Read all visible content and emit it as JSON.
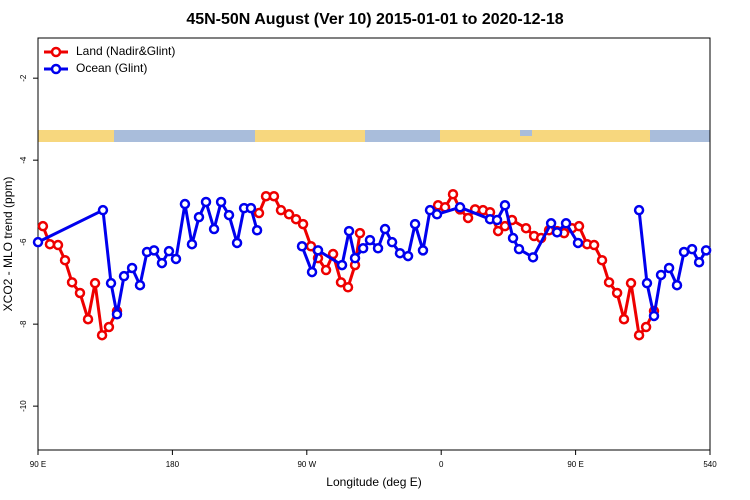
{
  "chart_data": {
    "type": "line",
    "title": "45N-50N August (Ver 10)   2015-01-01 to 2020-12-18",
    "x_label": "Longitude (deg E)",
    "y_label": "XCO2 - MLO trend (ppm)",
    "xlim": [
      90,
      540
    ],
    "xticks": [
      {
        "value": 90,
        "label": "90 E"
      },
      180,
      {
        "value": 270,
        "label": "90 W"
      },
      {
        "value": 360,
        "label": "0"
      },
      {
        "value": 450,
        "label": "90 E"
      },
      540
    ],
    "ylim": [
      -11.07,
      -1.02
    ],
    "yticks": [
      -10,
      -8,
      -6,
      -4,
      -2
    ],
    "legend": "top-left",
    "series": [
      {
        "name": "Land (Nadir&Glint)",
        "color": "#ee0000",
        "x": [
          93.3,
          98,
          103.4,
          108.1,
          112.8,
          118.1,
          123.5,
          128.2,
          132.9,
          137.5,
          142.9,
          null,
          238,
          242.7,
          248,
          252.7,
          258.1,
          262.8,
          267.5,
          272.8,
          277.5,
          282.9,
          287.6,
          292.9,
          297.6,
          302.3,
          305.6,
          null,
          357.9,
          362.6,
          367.9,
          372.6,
          378,
          382.7,
          388,
          392.7,
          398.1,
          402.7,
          407.4,
          416.8,
          422.2,
          426.9,
          432.2,
          437.6,
          442.3,
          447.6,
          452.3,
          457.7,
          462.4,
          467.7,
          472.4,
          477.8,
          482.4,
          487.1,
          492.5,
          497.2,
          502.5
        ],
        "values": [
          -5.61,
          -6.05,
          -6.07,
          -6.44,
          -6.98,
          -7.24,
          -7.88,
          -7.0,
          -8.27,
          -8.07,
          -7.68,
          null,
          -5.29,
          -4.88,
          -4.88,
          -5.22,
          -5.32,
          -5.44,
          -5.56,
          -6.1,
          -6.39,
          -6.68,
          -6.29,
          -6.98,
          -7.1,
          -6.56,
          -5.78,
          null,
          -5.1,
          -5.15,
          -4.83,
          -5.2,
          -5.41,
          -5.2,
          -5.22,
          -5.27,
          -5.73,
          -5.61,
          -5.46,
          -5.66,
          -5.85,
          -5.9,
          -5.71,
          -5.73,
          -5.78,
          -5.66,
          -5.61,
          -6.05,
          -6.07,
          -6.44,
          -6.98,
          -7.24,
          -7.88,
          -7.0,
          -8.27,
          -8.07,
          -7.68
        ]
      },
      {
        "name": "Ocean (Glint)",
        "color": "#0000ee",
        "x": [
          90,
          133.5,
          138.9,
          142.9,
          147.6,
          153,
          158.3,
          163,
          167.7,
          173,
          177.7,
          182.4,
          188.4,
          193.1,
          197.8,
          202.5,
          207.9,
          212.6,
          217.9,
          223.3,
          228,
          232.6,
          236.7,
          null,
          266.8,
          273.5,
          277.5,
          293.6,
          298.3,
          302.3,
          307.7,
          312.3,
          317.7,
          322.4,
          327.1,
          332.4,
          337.8,
          342.5,
          347.8,
          352.5,
          357.2,
          372.6,
          392.7,
          397.4,
          402.7,
          408.1,
          412.1,
          421.5,
          433.6,
          437.6,
          443.6,
          451.6,
          null,
          492.5,
          497.8,
          502.5,
          507.2,
          512.6,
          517.9,
          522.6,
          528,
          532.7,
          537.4
        ],
        "values": [
          -6.0,
          -5.22,
          -7.0,
          -7.76,
          -6.83,
          -6.63,
          -7.05,
          -6.24,
          -6.2,
          -6.51,
          -6.22,
          -6.41,
          -5.07,
          -6.05,
          -5.39,
          -5.02,
          -5.68,
          -5.02,
          -5.34,
          -6.02,
          -5.17,
          -5.17,
          -5.71,
          null,
          -6.1,
          -6.73,
          -6.2,
          -6.56,
          -5.73,
          -6.39,
          -6.15,
          -5.95,
          -6.15,
          -5.68,
          -6.0,
          -6.27,
          -6.34,
          -5.56,
          -6.2,
          -5.22,
          -5.32,
          -5.15,
          -5.44,
          -5.46,
          -5.1,
          -5.9,
          -6.17,
          -6.37,
          -5.54,
          -5.76,
          -5.54,
          -6.02,
          null,
          -5.22,
          -7.0,
          -7.8,
          -6.8,
          -6.63,
          -7.05,
          -6.24,
          -6.17,
          -6.49,
          -6.2
        ]
      }
    ]
  }
}
